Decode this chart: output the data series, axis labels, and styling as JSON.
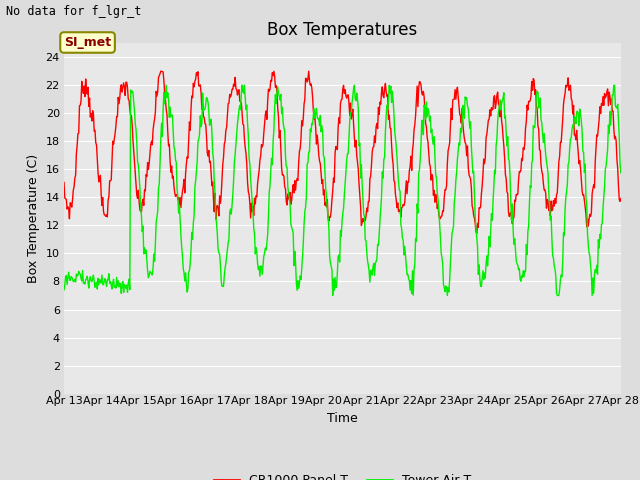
{
  "title": "Box Temperatures",
  "no_data_text": "No data for f_lgr_t",
  "legend_label_text": "SI_met",
  "xlabel": "Time",
  "ylabel": "Box Temperature (C)",
  "ylim": [
    0,
    25
  ],
  "yticks": [
    0,
    2,
    4,
    6,
    8,
    10,
    12,
    14,
    16,
    18,
    20,
    22,
    24
  ],
  "xlim_start": 0,
  "xlim_end": 15,
  "x_tick_labels": [
    "Apr 13",
    "Apr 14",
    "Apr 15",
    "Apr 16",
    "Apr 17",
    "Apr 18",
    "Apr 19",
    "Apr 20",
    "Apr 21",
    "Apr 22",
    "Apr 23",
    "Apr 24",
    "Apr 25",
    "Apr 26",
    "Apr 27",
    "Apr 28"
  ],
  "background_color": "#dddddd",
  "plot_bg_color": "#e8e8e8",
  "grid_color": "#ffffff",
  "line_color_red": "#ff0000",
  "line_color_green": "#00ee00",
  "legend_bg": "#ffffcc",
  "legend_border": "#888800",
  "title_fontsize": 12,
  "label_fontsize": 9,
  "tick_fontsize": 8,
  "figwidth": 6.4,
  "figheight": 4.8,
  "dpi": 100
}
